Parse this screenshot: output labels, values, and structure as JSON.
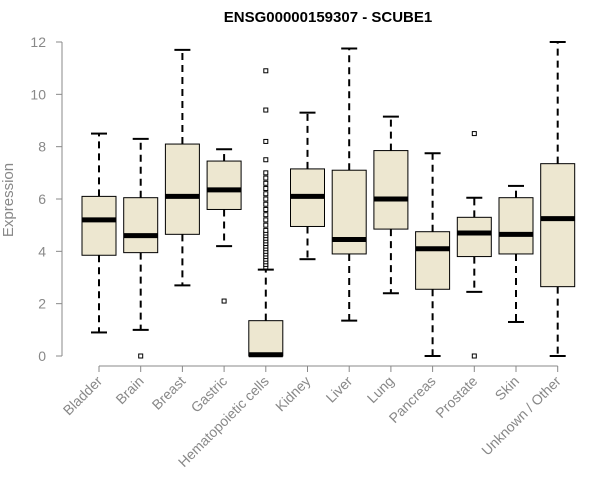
{
  "chart_data": {
    "type": "boxplot",
    "title": "ENSG00000159307 - SCUBE1",
    "ylabel": "Expression",
    "xlabel": "",
    "ylim": [
      0,
      12
    ],
    "yticks": [
      "0",
      "2",
      "4",
      "6",
      "8",
      "10",
      "12"
    ],
    "box_fill": "#ede7d0",
    "box_stroke": "#000000",
    "axis_color": "#888888",
    "categories": [
      "Bladder",
      "Brain",
      "Breast",
      "Gastric",
      "Hematopoietic cells",
      "Kidney",
      "Liver",
      "Lung",
      "Pancreas",
      "Prostate",
      "Skin",
      "Unknown / Other"
    ],
    "boxes": [
      {
        "whisker_low": 0.9,
        "q1": 3.85,
        "median": 5.2,
        "q3": 6.1,
        "whisker_high": 8.5,
        "outliers": []
      },
      {
        "whisker_low": 1.0,
        "q1": 3.95,
        "median": 4.6,
        "q3": 6.05,
        "whisker_high": 8.3,
        "outliers": [
          0.0
        ]
      },
      {
        "whisker_low": 2.7,
        "q1": 4.65,
        "median": 6.1,
        "q3": 8.1,
        "whisker_high": 11.7,
        "outliers": []
      },
      {
        "whisker_low": 4.2,
        "q1": 5.6,
        "median": 6.35,
        "q3": 7.45,
        "whisker_high": 7.9,
        "outliers": [
          2.1
        ]
      },
      {
        "whisker_low": 0.0,
        "q1": 0.0,
        "median": 0.05,
        "q3": 1.35,
        "whisker_high": 3.3,
        "outliers": [
          3.4,
          3.5,
          3.6,
          3.7,
          3.8,
          3.9,
          4.0,
          4.1,
          4.2,
          4.3,
          4.4,
          4.5,
          4.6,
          4.7,
          4.8,
          5.0,
          5.2,
          5.4,
          5.6,
          5.8,
          6.0,
          6.2,
          6.4,
          6.6,
          6.8,
          7.0,
          7.5,
          8.2,
          9.4,
          10.9
        ]
      },
      {
        "whisker_low": 3.7,
        "q1": 4.95,
        "median": 6.1,
        "q3": 7.15,
        "whisker_high": 9.3,
        "outliers": []
      },
      {
        "whisker_low": 1.35,
        "q1": 3.9,
        "median": 4.45,
        "q3": 7.1,
        "whisker_high": 11.75,
        "outliers": []
      },
      {
        "whisker_low": 2.4,
        "q1": 4.85,
        "median": 6.0,
        "q3": 7.85,
        "whisker_high": 9.15,
        "outliers": []
      },
      {
        "whisker_low": 0.0,
        "q1": 2.55,
        "median": 4.1,
        "q3": 4.75,
        "whisker_high": 7.75,
        "outliers": []
      },
      {
        "whisker_low": 2.45,
        "q1": 3.8,
        "median": 4.7,
        "q3": 5.3,
        "whisker_high": 6.05,
        "outliers": [
          0.0,
          8.5
        ]
      },
      {
        "whisker_low": 1.3,
        "q1": 3.9,
        "median": 4.65,
        "q3": 6.05,
        "whisker_high": 6.5,
        "outliers": []
      },
      {
        "whisker_low": 0.0,
        "q1": 2.65,
        "median": 5.25,
        "q3": 7.35,
        "whisker_high": 12.0,
        "outliers": []
      }
    ]
  }
}
